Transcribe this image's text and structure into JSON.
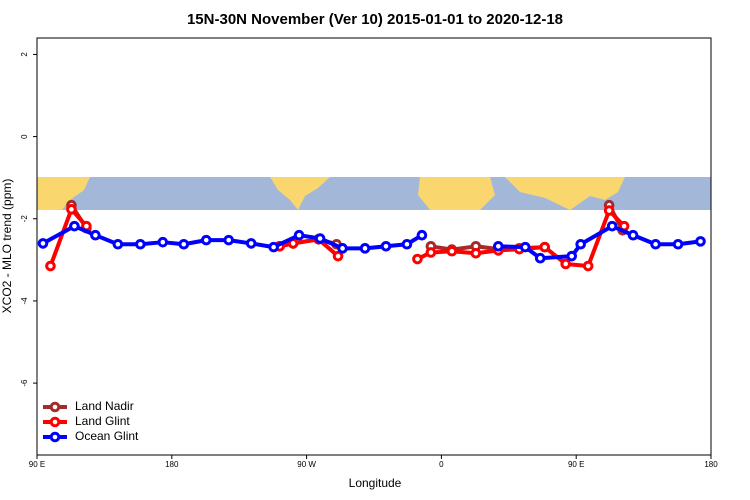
{
  "chart_data": {
    "type": "line",
    "title": "15N-30N November (Ver 10)   2015-01-01 to 2020-12-18",
    "xlabel": "Longitude",
    "ylabel": "XCO2 - MLO trend (ppm)",
    "xlim": [
      90,
      540
    ],
    "ylim": [
      -7.75,
      2.4
    ],
    "xticks": [
      {
        "value": 90,
        "label": "90 E"
      },
      {
        "value": 180,
        "label": "180"
      },
      {
        "value": 270,
        "label": "90 W"
      },
      {
        "value": 360,
        "label": "0"
      },
      {
        "value": 450,
        "label": "90 E"
      },
      {
        "value": 540,
        "label": "180"
      }
    ],
    "yticks": [
      2,
      0,
      -2,
      -4,
      -6
    ],
    "legend": "bottom-left",
    "series": [
      {
        "name": "Land Nadir",
        "color": "#a52a2a",
        "x": [
          113,
          123,
          null,
          252,
          261,
          278,
          290,
          null,
          353,
          367,
          383,
          398,
          412,
          429,
          null,
          472,
          481
        ],
        "values": [
          -1.67,
          -2.23,
          null,
          -2.67,
          -2.6,
          -2.5,
          -2.62,
          null,
          -2.67,
          -2.75,
          -2.67,
          -2.74,
          -2.72,
          -2.69,
          null,
          -1.67,
          -2.28
        ]
      },
      {
        "name": "Land Glint",
        "color": "#ff0000",
        "x": [
          99,
          113,
          123,
          null,
          252,
          261,
          278,
          291,
          null,
          344,
          353,
          367,
          383,
          398,
          412,
          429,
          443,
          458,
          472,
          482
        ],
        "values": [
          -3.15,
          -1.77,
          -2.18,
          null,
          -2.67,
          -2.6,
          -2.5,
          -2.91,
          null,
          -2.98,
          -2.82,
          -2.79,
          -2.84,
          -2.77,
          -2.74,
          -2.69,
          -3.1,
          -3.15,
          -1.8,
          -2.18
        ]
      },
      {
        "name": "Ocean Glint",
        "color": "#0000ff",
        "x": [
          94,
          115,
          129,
          144,
          159,
          174,
          188,
          203,
          218,
          233,
          248,
          265,
          279,
          294,
          309,
          323,
          337,
          347,
          null,
          398,
          416,
          426,
          447,
          453,
          474,
          488,
          503,
          518,
          533
        ],
        "values": [
          -2.6,
          -2.18,
          -2.4,
          -2.62,
          -2.62,
          -2.57,
          -2.62,
          -2.52,
          -2.52,
          -2.6,
          -2.69,
          -2.4,
          -2.48,
          -2.72,
          -2.72,
          -2.67,
          -2.62,
          -2.4,
          null,
          -2.67,
          -2.69,
          -2.96,
          -2.91,
          -2.62,
          -2.18,
          -2.4,
          -2.62,
          -2.62,
          -2.55
        ]
      }
    ]
  }
}
